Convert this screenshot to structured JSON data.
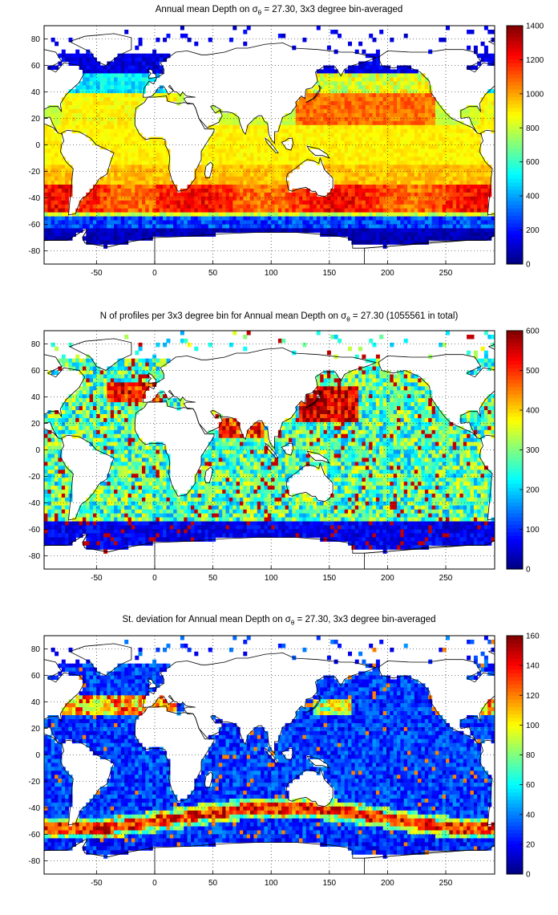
{
  "panels": [
    {
      "id": "mean-depth",
      "title_prefix": "Annual mean Depth on ",
      "sigma_symbol": "σ",
      "sigma_sub": "θ",
      "title_suffix": " = 27.30, 3x3 degree bin-averaged",
      "colorbar_ticks": [
        "0",
        "200",
        "400",
        "600",
        "800",
        "1000",
        "1200",
        "1400"
      ],
      "clim": [
        0,
        1400
      ]
    },
    {
      "id": "profile-count",
      "title_prefix": "N of profiles per 3x3 degree bin for Annual mean Depth on ",
      "sigma_symbol": "σ",
      "sigma_sub": "θ",
      "title_suffix": " = 27.30 (1055561 in total)",
      "colorbar_ticks": [
        "0",
        "100",
        "200",
        "300",
        "400",
        "500",
        "600"
      ],
      "clim": [
        0,
        600
      ]
    },
    {
      "id": "std-deviation",
      "title_prefix": "St. deviation for Annual mean Depth on ",
      "sigma_symbol": "σ",
      "sigma_sub": "θ",
      "title_suffix": " = 27.30, 3x3 degree bin-averaged",
      "colorbar_ticks": [
        "0",
        "20",
        "40",
        "60",
        "80",
        "100",
        "120",
        "140",
        "160"
      ],
      "clim": [
        0,
        160
      ]
    }
  ],
  "x_ticks": [
    "-50",
    "0",
    "50",
    "100",
    "150",
    "200",
    "250"
  ],
  "y_ticks": [
    "80",
    "60",
    "40",
    "20",
    "0",
    "-20",
    "-40",
    "-60",
    "-80"
  ],
  "xlim": [
    -95,
    292
  ],
  "ylim": [
    -90,
    90
  ],
  "grid": "dotted",
  "colormap": "jet"
}
